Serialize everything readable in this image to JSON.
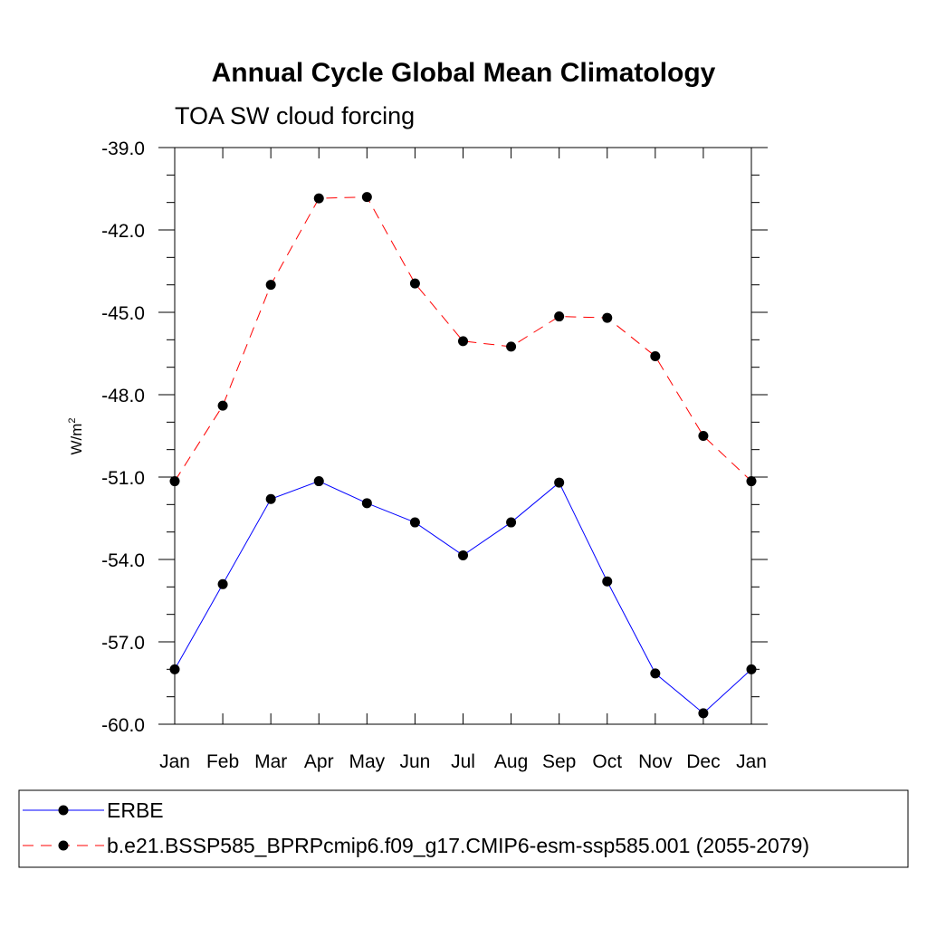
{
  "chart_data": {
    "type": "line",
    "title": "Annual Cycle Global Mean Climatology",
    "subtitle": "TOA SW cloud forcing",
    "ylabel_base": "W/m",
    "ylabel_sup": "2",
    "xlabel": "",
    "categories": [
      "Jan",
      "Feb",
      "Mar",
      "Apr",
      "May",
      "Jun",
      "Jul",
      "Aug",
      "Sep",
      "Oct",
      "Nov",
      "Dec",
      "Jan"
    ],
    "ylim": [
      -60.0,
      -39.0
    ],
    "yticks": [
      -39.0,
      -42.0,
      -45.0,
      -48.0,
      -51.0,
      -54.0,
      -57.0,
      -60.0
    ],
    "ytick_labels": [
      "-39.0",
      "-42.0",
      "-45.0",
      "-48.0",
      "-51.0",
      "-54.0",
      "-57.0",
      "-60.0"
    ],
    "grid": false,
    "legend_position": "bottom",
    "series": [
      {
        "name": "ERBE",
        "color": "#0000ff",
        "line_style": "solid",
        "marker": "filled-circle",
        "values": [
          -58.0,
          -54.9,
          -51.8,
          -51.15,
          -51.95,
          -52.65,
          -53.85,
          -52.65,
          -51.2,
          -54.8,
          -58.15,
          -59.6,
          -58.0
        ]
      },
      {
        "name": "b.e21.BSSP585_BPRPcmip6.f09_g17.CMIP6-esm-ssp585.001 (2055-2079)",
        "color": "#ff0000",
        "line_style": "dashed",
        "marker": "filled-circle",
        "values": [
          -51.15,
          -48.4,
          -44.0,
          -40.85,
          -40.8,
          -43.95,
          -46.05,
          -46.25,
          -45.15,
          -45.2,
          -46.6,
          -49.5,
          -51.15
        ]
      }
    ]
  }
}
